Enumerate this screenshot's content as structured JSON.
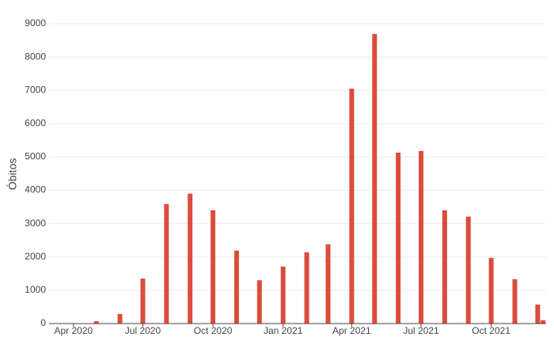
{
  "chart_data": {
    "type": "bar",
    "y_label": "Óbitos",
    "x": [
      "2020-05-01",
      "2020-06-01",
      "2020-07-01",
      "2020-08-01",
      "2020-09-01",
      "2020-10-01",
      "2020-11-01",
      "2020-12-01",
      "2021-01-01",
      "2021-02-01",
      "2021-03-01",
      "2021-04-01",
      "2021-05-01",
      "2021-06-01",
      "2021-07-01",
      "2021-08-01",
      "2021-09-01",
      "2021-10-01",
      "2021-11-01",
      "2021-12-01",
      "2021-12-08"
    ],
    "values": [
      70,
      290,
      1350,
      3590,
      3900,
      3400,
      2190,
      1300,
      1710,
      2140,
      2380,
      7050,
      8690,
      5130,
      5180,
      3400,
      3210,
      1970,
      1330,
      570,
      100
    ],
    "color": "#dc4c3b",
    "xlim": [
      "2020-02-29",
      "2021-12-12"
    ],
    "xticks": [
      {
        "value": "2020-04-01",
        "label": "Apr 2020"
      },
      {
        "value": "2020-07-01",
        "label": "Jul 2020"
      },
      {
        "value": "2020-10-01",
        "label": "Oct 2020"
      },
      {
        "value": "2021-01-01",
        "label": "Jan 2021"
      },
      {
        "value": "2021-04-01",
        "label": "Apr 2021"
      },
      {
        "value": "2021-07-01",
        "label": "Jul 2021"
      },
      {
        "value": "2021-10-01",
        "label": "Oct 2021"
      }
    ],
    "ylim": [
      0,
      9000
    ],
    "yticks": [
      0,
      1000,
      2000,
      3000,
      4000,
      5000,
      6000,
      7000,
      8000,
      9000
    ],
    "grid": true
  }
}
